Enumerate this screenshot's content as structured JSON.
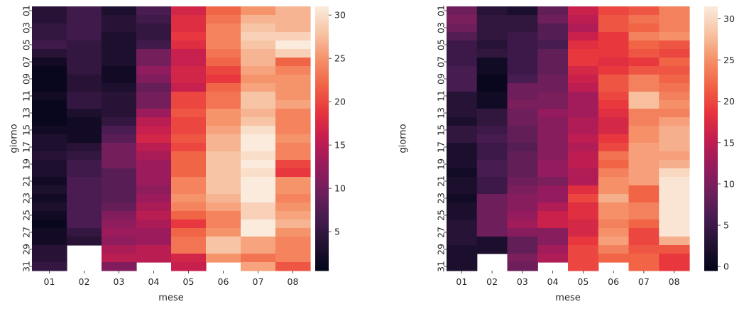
{
  "chart_data": [
    {
      "type": "heatmap",
      "title": "",
      "xlabel": "mese",
      "ylabel": "giorno",
      "categories": [
        "01",
        "02",
        "03",
        "04",
        "05",
        "06",
        "07",
        "08"
      ],
      "rows": [
        "01",
        "02",
        "03",
        "04",
        "05",
        "06",
        "07",
        "08",
        "09",
        "10",
        "11",
        "12",
        "13",
        "14",
        "15",
        "16",
        "17",
        "18",
        "19",
        "20",
        "21",
        "22",
        "23",
        "24",
        "25",
        "26",
        "27",
        "28",
        "29",
        "30",
        "31"
      ],
      "x_tick_labels": [
        "01",
        "02",
        "03",
        "04",
        "05",
        "06",
        "07",
        "08"
      ],
      "y_tick_labels": [
        "01",
        "03",
        "05",
        "07",
        "09",
        "11",
        "13",
        "15",
        "17",
        "19",
        "21",
        "23",
        "25",
        "27",
        "29",
        "31"
      ],
      "colorbar": {
        "range": [
          0.5,
          31
        ],
        "ticks": [
          5,
          10,
          15,
          20,
          25,
          30
        ],
        "tick_labels": [
          "5",
          "10",
          "15",
          "20",
          "25",
          "30"
        ],
        "colormap": "rocket"
      },
      "grid": false,
      "values": [
        [
          4,
          6,
          3,
          7,
          17,
          22,
          25,
          27
        ],
        [
          4,
          6,
          4,
          6,
          18,
          23,
          27,
          27
        ],
        [
          5,
          6,
          4,
          5,
          18,
          24,
          28,
          27
        ],
        [
          5,
          6,
          3,
          5,
          19,
          24,
          29,
          29
        ],
        [
          6,
          5,
          3,
          6,
          18,
          24,
          28,
          31
        ],
        [
          4,
          5,
          3,
          10,
          16,
          23,
          27,
          29
        ],
        [
          2,
          5,
          3,
          10,
          16,
          22,
          27,
          22
        ],
        [
          1,
          5,
          2,
          12,
          17,
          20,
          26,
          24
        ],
        [
          1,
          4,
          2,
          11,
          17,
          19,
          25,
          25
        ],
        [
          1,
          4,
          3,
          9,
          16,
          22,
          26,
          25
        ],
        [
          2,
          5,
          4,
          10,
          20,
          23,
          28,
          25
        ],
        [
          1,
          5,
          4,
          10,
          20,
          23,
          28,
          26
        ],
        [
          1,
          3,
          4,
          13,
          21,
          25,
          27,
          24
        ],
        [
          1,
          2,
          5,
          15,
          20,
          25,
          28,
          24
        ],
        [
          2,
          2,
          7,
          16,
          20,
          26,
          30,
          24
        ],
        [
          3,
          2,
          8,
          17,
          21,
          27,
          31,
          25
        ],
        [
          3,
          4,
          10,
          15,
          20,
          27,
          31,
          24
        ],
        [
          4,
          5,
          10,
          14,
          22,
          28,
          30,
          24
        ],
        [
          3,
          6,
          10,
          13,
          22,
          28,
          31,
          20
        ],
        [
          3,
          6,
          8,
          13,
          22,
          28,
          30,
          19
        ],
        [
          2,
          7,
          8,
          13,
          24,
          28,
          31,
          25
        ],
        [
          3,
          7,
          8,
          12,
          24,
          28,
          32,
          25
        ],
        [
          2,
          7,
          8,
          13,
          25,
          27,
          32,
          24
        ],
        [
          3,
          7,
          9,
          14,
          24,
          26,
          29,
          25
        ],
        [
          2,
          7,
          11,
          15,
          22,
          24,
          29,
          26
        ],
        [
          1,
          7,
          12,
          14,
          19,
          24,
          31,
          27
        ],
        [
          2,
          5,
          13,
          13,
          22,
          25,
          31,
          25
        ],
        [
          2,
          4,
          12,
          13,
          23,
          28,
          26,
          24
        ],
        [
          4,
          null,
          14,
          15,
          23,
          28,
          26,
          24
        ],
        [
          4,
          null,
          15,
          15,
          17,
          25,
          23,
          24
        ],
        [
          5,
          null,
          11,
          null,
          16,
          null,
          26,
          21
        ]
      ]
    },
    {
      "type": "heatmap",
      "title": "",
      "xlabel": "mese",
      "ylabel": "giorno",
      "categories": [
        "01",
        "02",
        "03",
        "04",
        "05",
        "06",
        "07",
        "08"
      ],
      "rows": [
        "01",
        "02",
        "03",
        "04",
        "05",
        "06",
        "07",
        "08",
        "09",
        "10",
        "11",
        "12",
        "13",
        "14",
        "15",
        "16",
        "17",
        "18",
        "19",
        "20",
        "21",
        "22",
        "23",
        "24",
        "25",
        "26",
        "27",
        "28",
        "29",
        "30",
        "31"
      ],
      "x_tick_labels": [
        "01",
        "02",
        "03",
        "04",
        "05",
        "06",
        "07",
        "08"
      ],
      "y_tick_labels": [
        "01",
        "03",
        "05",
        "07",
        "09",
        "11",
        "13",
        "15",
        "17",
        "19",
        "21",
        "23",
        "25",
        "27",
        "29",
        "31"
      ],
      "colorbar": {
        "range": [
          -0.5,
          31.5
        ],
        "ticks": [
          0,
          5,
          10,
          15,
          20,
          25,
          30
        ],
        "tick_labels": [
          "0",
          "5",
          "10",
          "15",
          "20",
          "25",
          "30"
        ],
        "colormap": "rocket"
      },
      "grid": false,
      "values": [
        [
          9,
          3,
          2,
          8,
          16,
          20,
          21,
          24
        ],
        [
          10,
          4,
          4,
          9,
          15,
          21,
          23,
          24
        ],
        [
          9,
          4,
          4,
          7,
          14,
          21,
          22,
          24
        ],
        [
          7,
          4,
          5,
          7,
          16,
          19,
          24,
          25
        ],
        [
          5,
          3,
          5,
          6,
          18,
          19,
          22,
          21
        ],
        [
          5,
          4,
          5,
          8,
          19,
          19,
          21,
          20
        ],
        [
          5,
          1,
          5,
          8,
          19,
          18,
          19,
          22
        ],
        [
          6,
          1,
          5,
          8,
          17,
          19,
          21,
          21
        ],
        [
          6,
          0,
          6,
          9,
          16,
          21,
          24,
          22
        ],
        [
          6,
          0,
          9,
          9,
          15,
          21,
          24,
          23
        ],
        [
          3,
          1,
          9,
          10,
          13,
          20,
          28,
          24
        ],
        [
          3,
          1,
          10,
          10,
          13,
          19,
          28,
          25
        ],
        [
          3,
          4,
          9,
          12,
          13,
          18,
          24,
          24
        ],
        [
          2,
          4,
          9,
          11,
          14,
          17,
          24,
          26
        ],
        [
          4,
          5,
          8,
          11,
          14,
          17,
          25,
          27
        ],
        [
          4,
          6,
          8,
          11,
          15,
          19,
          25,
          27
        ],
        [
          2,
          5,
          7,
          11,
          14,
          20,
          26,
          27
        ],
        [
          2,
          5,
          8,
          11,
          15,
          23,
          26,
          26
        ],
        [
          2,
          6,
          8,
          12,
          15,
          22,
          26,
          27
        ],
        [
          1,
          6,
          8,
          12,
          14,
          24,
          26,
          30
        ],
        [
          2,
          5,
          9,
          10,
          14,
          25,
          26,
          31
        ],
        [
          2,
          5,
          10,
          12,
          18,
          25,
          22,
          31
        ],
        [
          1,
          9,
          11,
          12,
          20,
          27,
          22,
          31
        ],
        [
          2,
          9,
          11,
          14,
          18,
          25,
          24,
          31
        ],
        [
          2,
          9,
          12,
          16,
          18,
          25,
          24,
          31
        ],
        [
          3,
          9,
          13,
          16,
          17,
          24,
          22,
          31
        ],
        [
          3,
          9,
          11,
          11,
          17,
          25,
          20,
          31
        ],
        [
          3,
          2,
          8,
          11,
          19,
          26,
          20,
          27
        ],
        [
          2,
          2,
          8,
          13,
          20,
          24,
          21,
          21
        ],
        [
          2,
          null,
          10,
          14,
          20,
          22,
          22,
          19
        ],
        [
          2,
          null,
          9,
          null,
          20,
          null,
          22,
          19
        ]
      ]
    }
  ]
}
